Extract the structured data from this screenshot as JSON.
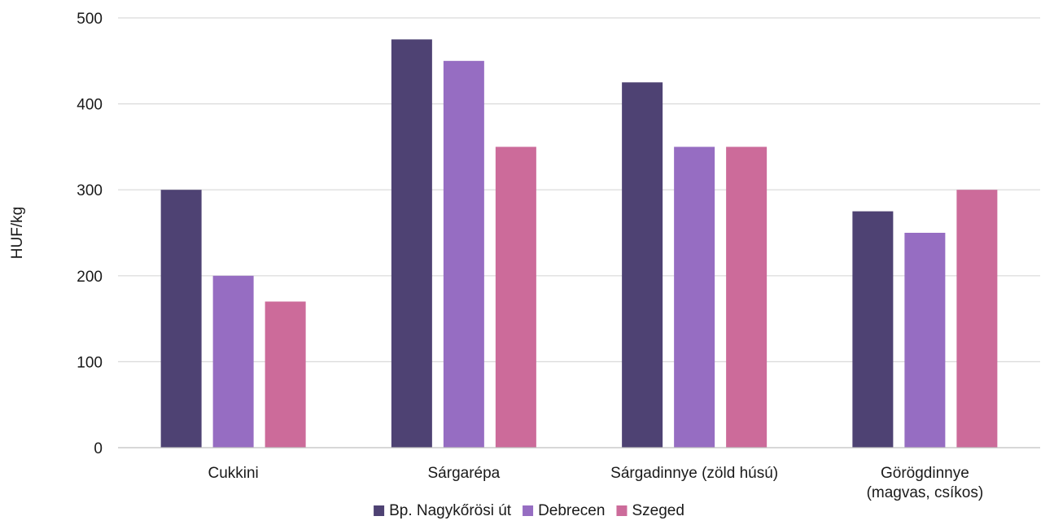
{
  "chart_data": {
    "type": "bar",
    "title": "",
    "xlabel": "",
    "ylabel": "HUF/kg",
    "ylim": [
      0,
      500
    ],
    "yticks": [
      0,
      100,
      200,
      300,
      400,
      500
    ],
    "grid": true,
    "legend_position": "bottom",
    "categories": [
      [
        "Cukkini"
      ],
      [
        "Sárgarépa"
      ],
      [
        "Sárgadinnye (zöld húsú)"
      ],
      [
        "Görögdinnye",
        "(magvas, csíkos)"
      ]
    ],
    "series": [
      {
        "name": "Bp. Nagykőrösi út",
        "color": "#4e4273",
        "values": [
          300,
          475,
          425,
          275
        ]
      },
      {
        "name": "Debrecen",
        "color": "#966dc2",
        "values": [
          200,
          450,
          350,
          250
        ]
      },
      {
        "name": "Szeged",
        "color": "#cc6b9a",
        "values": [
          170,
          350,
          350,
          300
        ]
      }
    ]
  },
  "colors": {
    "gridline": "#d9d9d9",
    "axis": "#bfbfbf",
    "text": "#1a1a1a"
  }
}
